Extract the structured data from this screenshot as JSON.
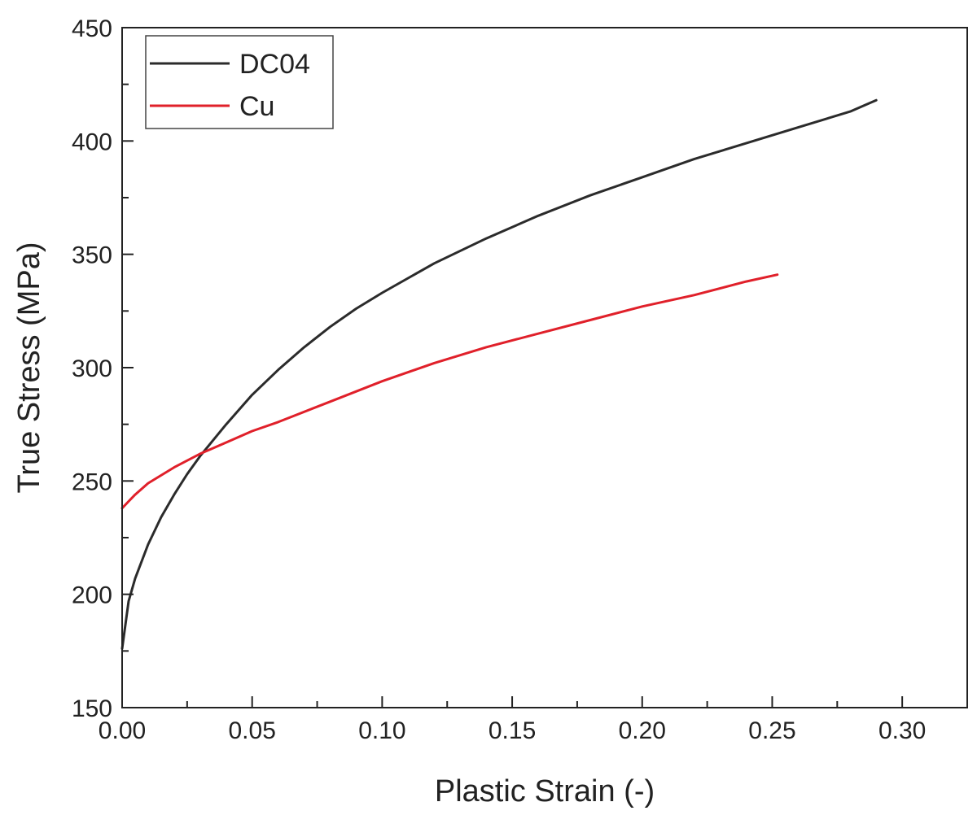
{
  "chart_data": {
    "type": "line",
    "title": "",
    "xlabel": "Plastic Strain (-)",
    "ylabel": "True Stress (MPa)",
    "xlim": [
      0,
      0.325
    ],
    "ylim": [
      150,
      450
    ],
    "x_ticks": [
      0.0,
      0.05,
      0.1,
      0.15,
      0.2,
      0.25,
      0.3
    ],
    "x_tick_labels": [
      "0.00",
      "0.05",
      "0.10",
      "0.15",
      "0.20",
      "0.25",
      "0.30"
    ],
    "y_ticks": [
      150,
      200,
      250,
      300,
      350,
      400,
      450
    ],
    "y_tick_labels": [
      "150",
      "200",
      "250",
      "300",
      "350",
      "400",
      "450"
    ],
    "grid": false,
    "legend_position": "top-left",
    "series": [
      {
        "name": "DC04",
        "color": "#2b2b2b",
        "x": [
          0.0,
          0.0025,
          0.005,
          0.01,
          0.015,
          0.02,
          0.025,
          0.03,
          0.035,
          0.04,
          0.05,
          0.06,
          0.07,
          0.08,
          0.09,
          0.1,
          0.12,
          0.14,
          0.16,
          0.18,
          0.2,
          0.22,
          0.24,
          0.26,
          0.28,
          0.29
        ],
        "y": [
          176,
          197,
          207,
          222,
          234,
          244,
          253,
          261,
          268,
          275,
          288,
          299,
          309,
          318,
          326,
          333,
          346,
          357,
          367,
          376,
          384,
          392,
          399,
          406,
          413,
          418
        ]
      },
      {
        "name": "Cu",
        "color": "#e0202a",
        "x": [
          0.0,
          0.0025,
          0.005,
          0.01,
          0.02,
          0.03,
          0.04,
          0.05,
          0.06,
          0.08,
          0.1,
          0.12,
          0.14,
          0.16,
          0.18,
          0.2,
          0.22,
          0.24,
          0.252
        ],
        "y": [
          238,
          241,
          244,
          249,
          256,
          262,
          267,
          272,
          276,
          285,
          294,
          302,
          309,
          315,
          321,
          327,
          332,
          338,
          341
        ]
      }
    ]
  }
}
